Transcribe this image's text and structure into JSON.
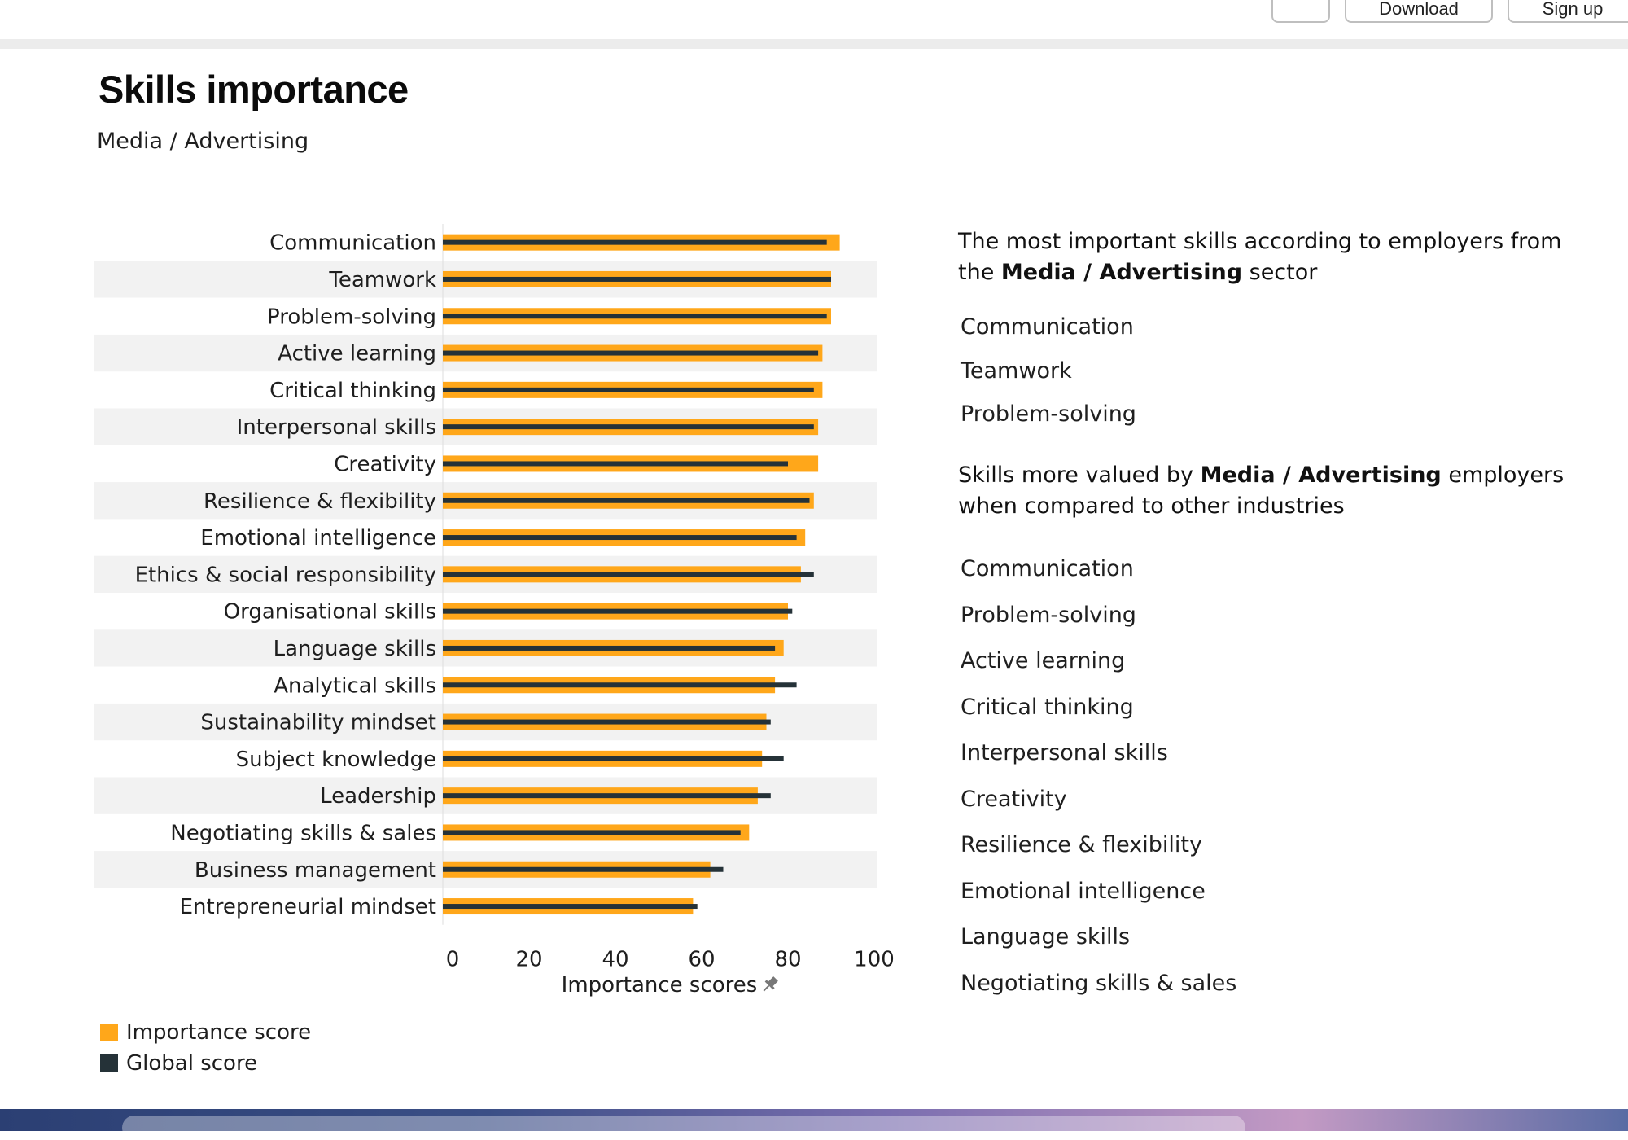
{
  "topbar": {
    "buttons": [
      "",
      "Download",
      "Sign up"
    ]
  },
  "header": {
    "title": "Skills importance",
    "subtitle": "Media / Advertising"
  },
  "chart_data": {
    "type": "bar",
    "orientation": "horizontal",
    "categories": [
      "Communication",
      "Teamwork",
      "Problem-solving",
      "Active learning",
      "Critical thinking",
      "Interpersonal skills",
      "Creativity",
      "Resilience & flexibility",
      "Emotional intelligence",
      "Ethics & social responsibility",
      "Organisational skills",
      "Language skills",
      "Analytical skills",
      "Sustainability mindset",
      "Subject knowledge",
      "Leadership",
      "Negotiating skills & sales",
      "Business management",
      "Entrepreneurial mindset"
    ],
    "series": [
      {
        "name": "Importance score",
        "color": "#ffa71a",
        "values": [
          92,
          90,
          90,
          88,
          88,
          87,
          87,
          86,
          84,
          83,
          80,
          79,
          77,
          75,
          74,
          73,
          71,
          62,
          58
        ]
      },
      {
        "name": "Global score",
        "color": "#253238",
        "values": [
          89,
          90,
          89,
          87,
          86,
          86,
          80,
          85,
          82,
          86,
          81,
          77,
          82,
          76,
          79,
          76,
          69,
          65,
          59
        ]
      }
    ],
    "xlabel": "Importance scores",
    "xticks": [
      0,
      20,
      40,
      60,
      80,
      100
    ],
    "xlim": [
      0,
      100
    ],
    "grid": false,
    "legend_position": "bottom-left"
  },
  "axis_pin_icon": "pin-icon",
  "legend": {
    "items": [
      {
        "label": "Importance score",
        "color": "#ffa71a"
      },
      {
        "label": "Global score",
        "color": "#253238"
      }
    ]
  },
  "sidebar": {
    "most_important": {
      "prefix": "The most important skills according to employers from the ",
      "sector": "Media / Advertising",
      "suffix": " sector",
      "items": [
        "Communication",
        "Teamwork",
        "Problem-solving"
      ]
    },
    "more_valued": {
      "prefix": "Skills more valued by ",
      "sector": "Media / Advertising",
      "suffix": " employers when compared to other industries",
      "items": [
        "Communication",
        "Problem-solving",
        "Active learning",
        "Critical thinking",
        "Interpersonal skills",
        "Creativity",
        "Resilience & flexibility",
        "Emotional intelligence",
        "Language skills",
        "Negotiating skills & sales"
      ]
    }
  }
}
